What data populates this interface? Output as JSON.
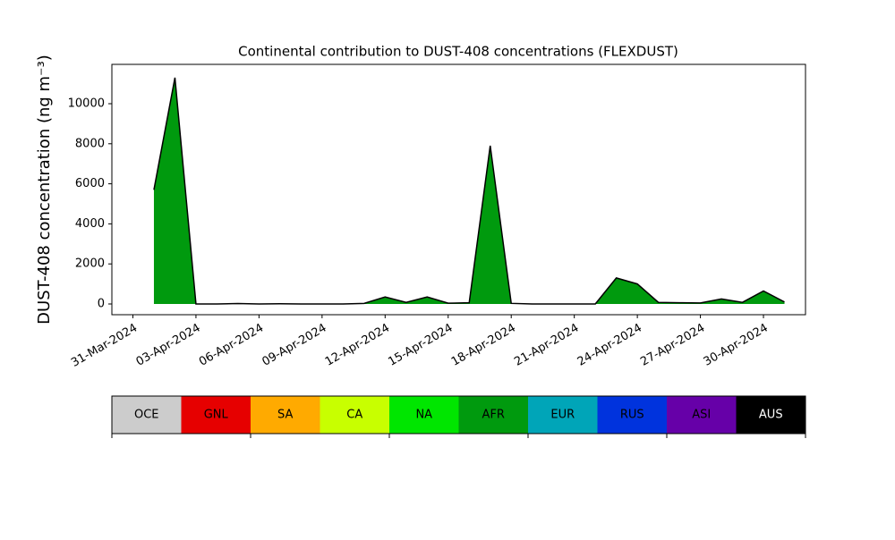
{
  "chart_data": {
    "type": "area",
    "title": "Continental contribution to DUST-408 concentrations (FLEXDUST)",
    "y_label": "DUST-408 concentration (ng m⁻³)",
    "x": [
      "2024-04-01",
      "2024-04-02",
      "2024-04-03",
      "2024-04-04",
      "2024-04-05",
      "2024-04-06",
      "2024-04-07",
      "2024-04-08",
      "2024-04-09",
      "2024-04-10",
      "2024-04-11",
      "2024-04-12",
      "2024-04-13",
      "2024-04-14",
      "2024-04-15",
      "2024-04-16",
      "2024-04-17",
      "2024-04-18",
      "2024-04-19",
      "2024-04-20",
      "2024-04-21",
      "2024-04-22",
      "2024-04-23",
      "2024-04-24",
      "2024-04-25",
      "2024-04-26",
      "2024-04-27",
      "2024-04-28",
      "2024-04-29",
      "2024-04-30",
      "2024-05-01"
    ],
    "values": [
      5700,
      11300,
      0,
      0,
      20,
      0,
      10,
      0,
      0,
      0,
      30,
      350,
      80,
      350,
      40,
      60,
      7900,
      30,
      0,
      0,
      0,
      0,
      1300,
      1000,
      80,
      60,
      50,
      250,
      80,
      650,
      100
    ],
    "color": "#009a0e",
    "line_color": "#000000",
    "xlim": [
      "2024-03-30",
      "2024-05-02"
    ],
    "xticks": [
      {
        "value": "2024-03-31",
        "label": "31-Mar-2024"
      },
      {
        "value": "2024-04-03",
        "label": "03-Apr-2024"
      },
      {
        "value": "2024-04-06",
        "label": "06-Apr-2024"
      },
      {
        "value": "2024-04-09",
        "label": "09-Apr-2024"
      },
      {
        "value": "2024-04-12",
        "label": "12-Apr-2024"
      },
      {
        "value": "2024-04-15",
        "label": "15-Apr-2024"
      },
      {
        "value": "2024-04-18",
        "label": "18-Apr-2024"
      },
      {
        "value": "2024-04-21",
        "label": "21-Apr-2024"
      },
      {
        "value": "2024-04-24",
        "label": "24-Apr-2024"
      },
      {
        "value": "2024-04-27",
        "label": "27-Apr-2024"
      },
      {
        "value": "2024-04-30",
        "label": "30-Apr-2024"
      }
    ],
    "ylim": [
      -536,
      11964
    ],
    "yticks": [
      0,
      2000,
      4000,
      6000,
      8000,
      10000
    ],
    "colorbar": {
      "labels": [
        "OCE",
        "GNL",
        "SA",
        "CA",
        "NA",
        "AFR",
        "EUR",
        "RUS",
        "ASI",
        "AUS"
      ],
      "colors": [
        "#cccccc",
        "#e60000",
        "#ffaa00",
        "#c8ff00",
        "#00e600",
        "#009a0e",
        "#00a5b8",
        "#0033dd",
        "#6600a8",
        "#000000"
      ],
      "text_colors": [
        "#000000",
        "#000000",
        "#000000",
        "#000000",
        "#000000",
        "#000000",
        "#000000",
        "#000000",
        "#000000",
        "#ffffff"
      ]
    }
  }
}
